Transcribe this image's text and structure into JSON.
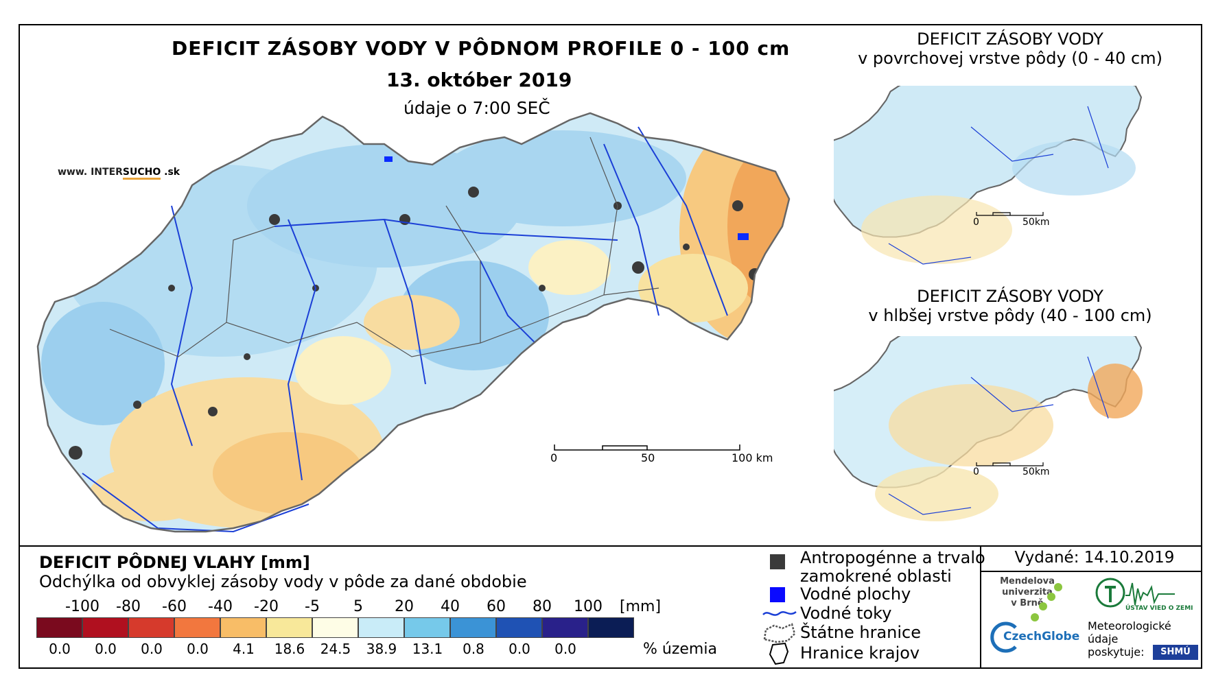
{
  "main_map": {
    "title": "DEFICIT ZÁSOBY VODY V PÔDNOM PROFILE 0 - 100 cm",
    "date": "13. október 2019",
    "subtitle": "údaje o 7:00 SEČ",
    "website_prefix": "www. INTER",
    "website_brand": "SUCHO",
    "website_suffix": " .sk",
    "scale_ticks": [
      "0",
      "50",
      "100 km"
    ]
  },
  "side_maps": [
    {
      "title_line1": "DEFICIT ZÁSOBY VODY",
      "title_line2": "v povrchovej vrstve pôdy (0 - 40 cm)",
      "scale_ticks": [
        "0",
        "50km"
      ]
    },
    {
      "title_line1": "DEFICIT ZÁSOBY VODY",
      "title_line2": "v hlbšej vrstve pôdy (40 - 100 cm)",
      "scale_ticks": [
        "0",
        "50km"
      ]
    }
  ],
  "legend": {
    "title": "DEFICIT PÔDNEJ VLAHY [mm]",
    "subtitle": "Odchýlka od obvyklej zásoby vody v pôde za dané obdobie",
    "class_breaks": [
      "-100",
      "-80",
      "-60",
      "-40",
      "-20",
      "-5",
      "5",
      "20",
      "40",
      "60",
      "80",
      "100"
    ],
    "unit": "[mm]",
    "colors": [
      "#7a0a1e",
      "#b0101f",
      "#d63a2c",
      "#f2773e",
      "#f8bd67",
      "#f8e89a",
      "#fefde6",
      "#c9ecf8",
      "#76c9ea",
      "#3b93d6",
      "#1f52b4",
      "#29218a",
      "#0b1d55"
    ],
    "percentages": [
      "0.0",
      "0.0",
      "0.0",
      "0.0",
      "4.1",
      "18.6",
      "24.5",
      "38.9",
      "13.1",
      "0.8",
      "0.0",
      "0.0"
    ],
    "percent_unit": "% územia"
  },
  "map_key": {
    "anthropogenic_line1": "Antropogénne a trvalo",
    "anthropogenic_line2": "zamokrené oblasti",
    "water_bodies": "Vodné plochy",
    "rivers": "Vodné toky",
    "state_border": "Štátne hranice",
    "region_border": "Hranice krajov"
  },
  "issue": {
    "issued": "Vydané: 14.10.2019",
    "mendel_line1": "Mendelova",
    "mendel_line2": "univerzita",
    "mendel_line3": "v Brně",
    "czechglobe": "CzechGlobe",
    "uvz_line1": "ÚSTAV VIED O ZEMI",
    "meteo_line1": "Meteorologické",
    "meteo_line2": "údaje",
    "meteo_line3": "poskytuje:",
    "shmu": "SHMÚ"
  }
}
